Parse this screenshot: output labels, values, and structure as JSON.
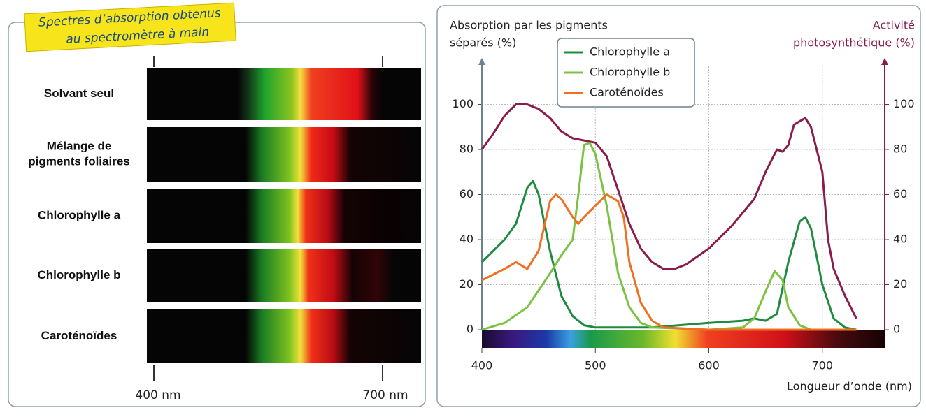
{
  "spectra_panel": {
    "title": [
      "Spectres d’absorption obtenus",
      "au spectromètre à main"
    ],
    "rows": [
      [
        "Solvant seul"
      ],
      [
        "Mélange de",
        "pigments foliaires"
      ],
      [
        "Chlorophylle a"
      ],
      [
        "Chlorophylle b"
      ],
      [
        "Caroténoïdes"
      ]
    ],
    "ticks": [
      "400 nm",
      "700 nm"
    ]
  },
  "chart_data": {
    "type": "line",
    "y_label": [
      "Absorption par les pigments",
      "séparés (%)"
    ],
    "y2_label": [
      "Activité",
      "photosynthétique (%)"
    ],
    "x_label": "Longueur d’onde (nm)",
    "xlim": [
      400,
      755
    ],
    "xticks": [
      400,
      500,
      600,
      700
    ],
    "ylim": [
      0,
      120
    ],
    "yticks": [
      0,
      20,
      40,
      60,
      80,
      100
    ],
    "y2lim": [
      0,
      120
    ],
    "y2ticks": [
      0,
      20,
      40,
      60,
      80,
      100
    ],
    "grid": true,
    "legend": "top",
    "series": [
      {
        "name": "Chlorophylle a",
        "color": "#1e8c3e",
        "x": [
          400,
          420,
          430,
          440,
          445,
          450,
          460,
          470,
          480,
          490,
          500,
          550,
          600,
          630,
          640,
          650,
          660,
          670,
          680,
          685,
          690,
          700,
          710,
          720,
          730
        ],
        "values": [
          30,
          40,
          47,
          63,
          66,
          60,
          35,
          15,
          6,
          2,
          1,
          1,
          3,
          4,
          5,
          4,
          7,
          30,
          48,
          50,
          45,
          20,
          5,
          1,
          0
        ]
      },
      {
        "name": "Chlorophylle b",
        "color": "#7cc242",
        "x": [
          400,
          420,
          440,
          460,
          470,
          480,
          485,
          490,
          495,
          500,
          510,
          520,
          530,
          540,
          550,
          600,
          630,
          640,
          650,
          658,
          665,
          670,
          680,
          690,
          730
        ],
        "values": [
          0,
          3,
          10,
          25,
          33,
          40,
          60,
          82,
          83,
          78,
          55,
          25,
          10,
          3,
          1,
          0,
          1,
          5,
          17,
          26,
          22,
          10,
          2,
          0,
          0
        ]
      },
      {
        "name": "Caroténoïdes",
        "color": "#f07022",
        "x": [
          400,
          420,
          430,
          440,
          450,
          460,
          465,
          470,
          480,
          485,
          490,
          500,
          510,
          520,
          525,
          530,
          540,
          550,
          560,
          600,
          730
        ],
        "values": [
          22,
          27,
          30,
          27,
          35,
          57,
          60,
          58,
          50,
          47,
          50,
          55,
          60,
          57,
          50,
          30,
          12,
          4,
          1,
          0,
          0
        ]
      },
      {
        "color": "#8a1c4c",
        "axis": "y2",
        "x": [
          400,
          410,
          420,
          430,
          440,
          450,
          460,
          470,
          480,
          490,
          500,
          510,
          520,
          530,
          540,
          550,
          560,
          570,
          580,
          600,
          620,
          640,
          650,
          660,
          665,
          670,
          675,
          685,
          690,
          700,
          705,
          710,
          720,
          730
        ],
        "values": [
          80,
          87,
          95,
          100,
          100,
          98,
          94,
          88,
          85,
          84,
          83,
          77,
          62,
          47,
          36,
          30,
          27,
          27,
          29,
          36,
          46,
          58,
          70,
          80,
          79,
          82,
          91,
          94,
          90,
          70,
          40,
          27,
          15,
          5
        ]
      }
    ]
  }
}
